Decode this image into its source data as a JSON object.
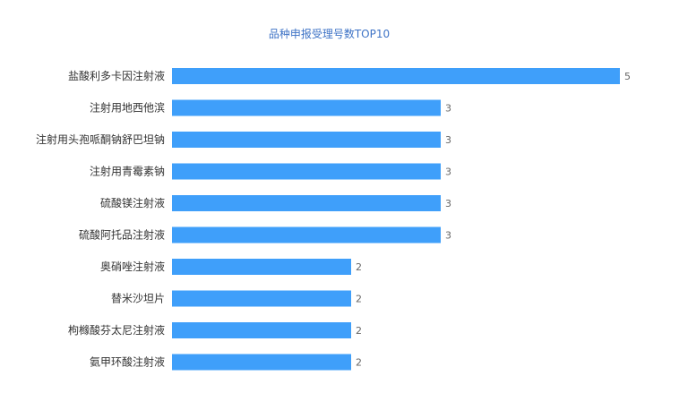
{
  "chart_data": {
    "type": "bar",
    "orientation": "horizontal",
    "title": "品种申报受理号数TOP10",
    "categories": [
      "盐酸利多卡因注射液",
      "注射用地西他滨",
      "注射用头孢哌酮钠舒巴坦钠",
      "注射用青霉素钠",
      "硫酸镁注射液",
      "硫酸阿托品注射液",
      "奥硝唑注射液",
      "替米沙坦片",
      "枸橼酸芬太尼注射液",
      "氨甲环酸注射液"
    ],
    "values": [
      5,
      3,
      3,
      3,
      3,
      3,
      2,
      2,
      2,
      2
    ],
    "xlim": [
      0,
      5
    ],
    "grid": false,
    "data_labels": true,
    "bar_color": "#3f9ffa"
  }
}
